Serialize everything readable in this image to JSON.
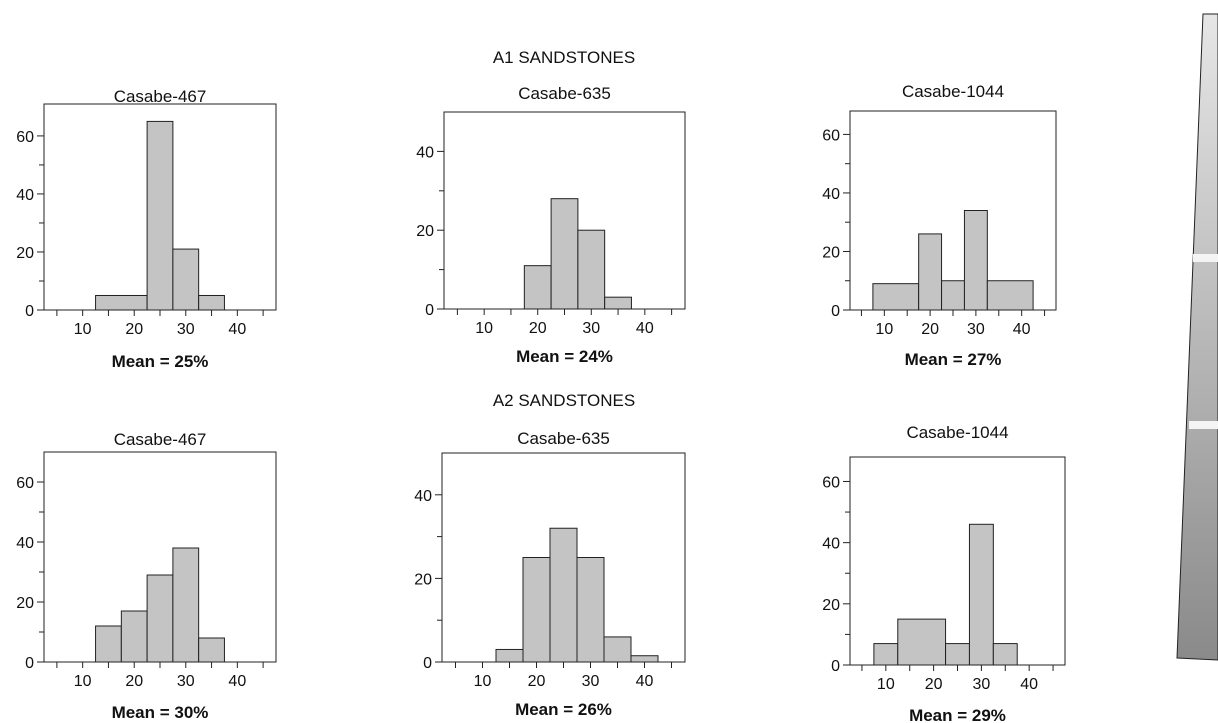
{
  "groups": {
    "a1_title": "A1 SANDSTONES",
    "a2_title": "A2 SANDSTONES"
  },
  "colors": {
    "bar_fill": "#c4c4c4",
    "bar_stroke": "#222222",
    "wedge_top": "#e6e6e6",
    "wedge_bottom": "#8a8a8a",
    "wedge_band": "#f4f4f4"
  },
  "chart_data": [
    {
      "type": "bar",
      "group": "A1 SANDSTONES",
      "title": "Casabe-467",
      "xlabel": "Mean = 25%",
      "ylabel": "",
      "xlim": [
        2.5,
        47.5
      ],
      "ylim": [
        0,
        71
      ],
      "xticks_labeled": [
        10,
        20,
        30,
        40
      ],
      "yticks_labeled": [
        0,
        20,
        40,
        60
      ],
      "yticks_minor": [
        10,
        30,
        50
      ],
      "bins": [
        {
          "x0": 12.5,
          "x1": 22.5,
          "value": 5
        },
        {
          "x0": 22.5,
          "x1": 27.5,
          "value": 65
        },
        {
          "x0": 27.5,
          "x1": 32.5,
          "value": 21
        },
        {
          "x0": 32.5,
          "x1": 37.5,
          "value": 5
        }
      ]
    },
    {
      "type": "bar",
      "group": "A1 SANDSTONES",
      "title": "Casabe-635",
      "xlabel": "Mean = 24%",
      "ylabel": "",
      "xlim": [
        2.5,
        47.5
      ],
      "ylim": [
        0,
        50
      ],
      "xticks_labeled": [
        10,
        20,
        30,
        40
      ],
      "yticks_labeled": [
        0,
        20,
        40
      ],
      "yticks_minor": [
        10,
        30
      ],
      "bins": [
        {
          "x0": 17.5,
          "x1": 22.5,
          "value": 11
        },
        {
          "x0": 22.5,
          "x1": 27.5,
          "value": 28
        },
        {
          "x0": 27.5,
          "x1": 32.5,
          "value": 20
        },
        {
          "x0": 32.5,
          "x1": 37.5,
          "value": 3
        }
      ]
    },
    {
      "type": "bar",
      "group": "A1 SANDSTONES",
      "title": "Casabe-1044",
      "xlabel": "Mean = 27%",
      "ylabel": "",
      "xlim": [
        2.5,
        47.5
      ],
      "ylim": [
        0,
        68
      ],
      "xticks_labeled": [
        10,
        20,
        30,
        40
      ],
      "yticks_labeled": [
        0,
        20,
        40,
        60
      ],
      "yticks_minor": [
        10,
        30,
        50
      ],
      "bins": [
        {
          "x0": 7.5,
          "x1": 17.5,
          "value": 9
        },
        {
          "x0": 17.5,
          "x1": 22.5,
          "value": 26
        },
        {
          "x0": 22.5,
          "x1": 27.5,
          "value": 10
        },
        {
          "x0": 27.5,
          "x1": 32.5,
          "value": 34
        },
        {
          "x0": 32.5,
          "x1": 42.5,
          "value": 10
        }
      ]
    },
    {
      "type": "bar",
      "group": "A2 SANDSTONES",
      "title": "Casabe-467",
      "xlabel": "Mean = 30%",
      "ylabel": "",
      "xlim": [
        2.5,
        47.5
      ],
      "ylim": [
        0,
        70
      ],
      "xticks_labeled": [
        10,
        20,
        30,
        40
      ],
      "yticks_labeled": [
        0,
        20,
        40,
        60
      ],
      "yticks_minor": [
        10,
        30,
        50
      ],
      "bins": [
        {
          "x0": 12.5,
          "x1": 17.5,
          "value": 12
        },
        {
          "x0": 17.5,
          "x1": 22.5,
          "value": 17
        },
        {
          "x0": 22.5,
          "x1": 27.5,
          "value": 29
        },
        {
          "x0": 27.5,
          "x1": 32.5,
          "value": 38
        },
        {
          "x0": 32.5,
          "x1": 37.5,
          "value": 8
        }
      ]
    },
    {
      "type": "bar",
      "group": "A2 SANDSTONES",
      "title": "Casabe-635",
      "xlabel": "Mean = 26%",
      "ylabel": "",
      "xlim": [
        2.5,
        47.5
      ],
      "ylim": [
        0,
        50
      ],
      "xticks_labeled": [
        10,
        20,
        30,
        40
      ],
      "yticks_labeled": [
        0,
        20,
        40
      ],
      "yticks_minor": [
        10,
        30
      ],
      "bins": [
        {
          "x0": 12.5,
          "x1": 17.5,
          "value": 3
        },
        {
          "x0": 17.5,
          "x1": 22.5,
          "value": 25
        },
        {
          "x0": 22.5,
          "x1": 27.5,
          "value": 32
        },
        {
          "x0": 27.5,
          "x1": 32.5,
          "value": 25
        },
        {
          "x0": 32.5,
          "x1": 37.5,
          "value": 6
        },
        {
          "x0": 37.5,
          "x1": 42.5,
          "value": 1.5
        }
      ]
    },
    {
      "type": "bar",
      "group": "A2 SANDSTONES",
      "title": "Casabe-1044",
      "xlabel": "Mean = 29%",
      "ylabel": "",
      "xlim": [
        2.5,
        47.5
      ],
      "ylim": [
        0,
        68
      ],
      "xticks_labeled": [
        10,
        20,
        30,
        40
      ],
      "yticks_labeled": [
        0,
        20,
        40,
        60
      ],
      "yticks_minor": [
        10,
        30,
        50
      ],
      "bins": [
        {
          "x0": 7.5,
          "x1": 12.5,
          "value": 7
        },
        {
          "x0": 12.5,
          "x1": 22.5,
          "value": 15
        },
        {
          "x0": 22.5,
          "x1": 27.5,
          "value": 7
        },
        {
          "x0": 27.5,
          "x1": 32.5,
          "value": 46
        },
        {
          "x0": 32.5,
          "x1": 37.5,
          "value": 7
        }
      ]
    }
  ]
}
